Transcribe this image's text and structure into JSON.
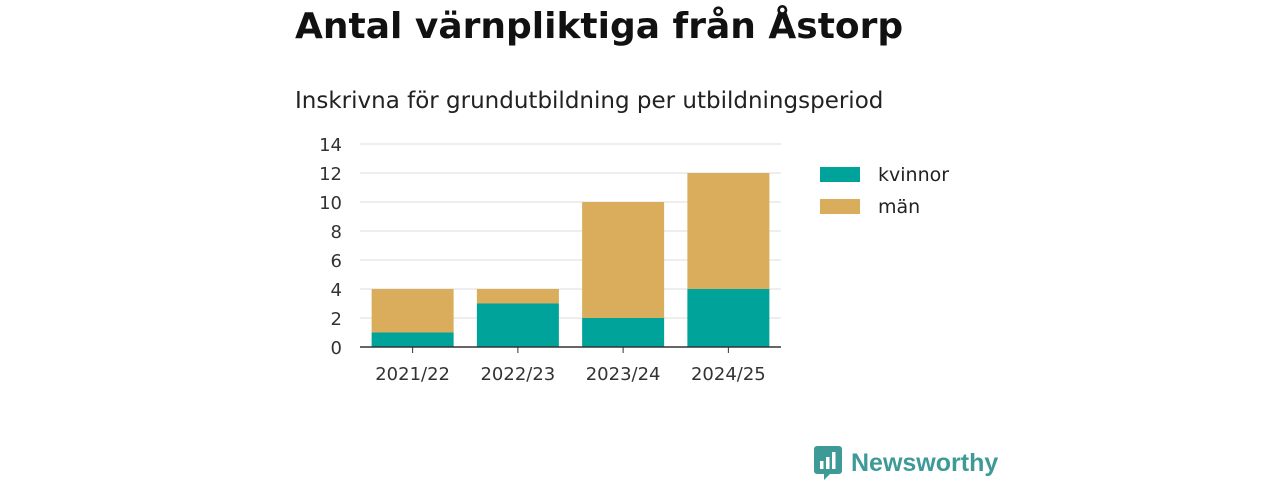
{
  "title": "Antal värnpliktiga från Åstorp",
  "subtitle": "Inskrivna för grundutbildning per utbildningsperiod",
  "brand": {
    "name": "Newsworthy",
    "logo_icon": "newsworthy-logo-icon",
    "color": "#3e9a96"
  },
  "chart_data": {
    "type": "bar",
    "stacked": true,
    "categories": [
      "2021/22",
      "2022/23",
      "2023/24",
      "2024/25"
    ],
    "series": [
      {
        "name": "kvinnor",
        "color": "#00a39a",
        "values": [
          1,
          3,
          2,
          4
        ]
      },
      {
        "name": "män",
        "color": "#d9ad5b",
        "values": [
          3,
          1,
          8,
          8
        ]
      }
    ],
    "ylim": [
      0,
      14
    ],
    "yticks": [
      0,
      2,
      4,
      6,
      8,
      10,
      12,
      14
    ],
    "grid": true,
    "legend": "right",
    "xlabel": "",
    "ylabel": ""
  }
}
